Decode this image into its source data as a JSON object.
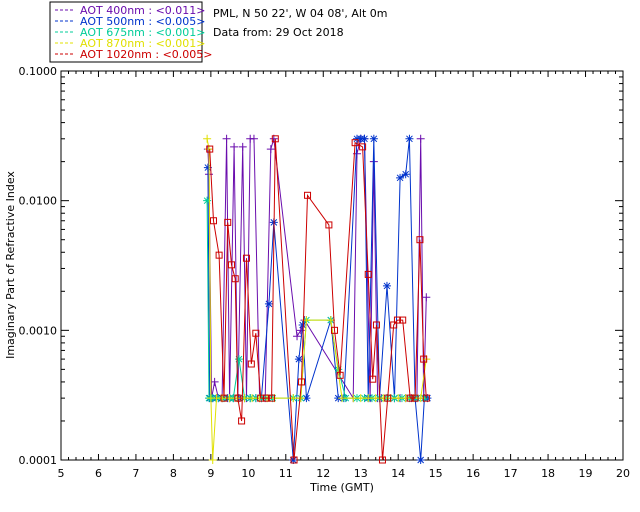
{
  "chart_data": {
    "type": "line",
    "title": "",
    "xlabel": "Time (GMT)",
    "ylabel": "Imaginary Part of Refractive Index",
    "xlim": [
      5,
      20
    ],
    "ylim": [
      0.0001,
      0.1
    ],
    "yscale": "log",
    "grid": false,
    "legend_position": "top-left",
    "x_ticks": [
      "5",
      "6",
      "7",
      "8",
      "9",
      "10",
      "11",
      "12",
      "13",
      "14",
      "15",
      "16",
      "17",
      "18",
      "19",
      "20"
    ],
    "y_ticks": [
      "0.0001",
      "0.0010",
      "0.0100",
      "0.1000"
    ],
    "info_lines": [
      "PML, N 50 22', W 04 08', Alt 0m",
      "Data from: 29 Oct 2018"
    ],
    "series": [
      {
        "name": "AOT  400nm : <0.011>",
        "color": "#6a0dad",
        "marker": "plus",
        "x": [
          8.92,
          8.95,
          9.02,
          9.1,
          9.2,
          9.3,
          9.42,
          9.5,
          9.62,
          9.72,
          9.85,
          9.95,
          10.05,
          10.15,
          10.3,
          10.45,
          10.6,
          10.68,
          11.3,
          11.4,
          11.5,
          12.8,
          12.9,
          13.0,
          13.1,
          13.25,
          13.35,
          13.45,
          13.55,
          13.7,
          13.8,
          13.9,
          14.05,
          14.2,
          14.35,
          14.5,
          14.6,
          14.68,
          14.75
        ],
        "y": [
          0.025,
          0.016,
          0.0003,
          0.0004,
          0.0003,
          0.0003,
          0.03,
          0.0003,
          0.026,
          0.0003,
          0.026,
          0.0003,
          0.03,
          0.03,
          0.0003,
          0.0003,
          0.025,
          0.03,
          0.0009,
          0.001,
          0.0012,
          0.0003,
          0.023,
          0.03,
          0.03,
          0.0003,
          0.02,
          0.0003,
          0.0003,
          0.0003,
          0.0003,
          0.0003,
          0.0003,
          0.0003,
          0.0003,
          0.0003,
          0.03,
          0.0003,
          0.0018
        ]
      },
      {
        "name": "AOT  500nm : <0.005>",
        "color": "#0033cc",
        "marker": "asterisk",
        "x": [
          8.92,
          8.97,
          9.05,
          9.15,
          9.3,
          9.45,
          9.6,
          9.75,
          9.9,
          10.05,
          10.2,
          10.35,
          10.55,
          10.68,
          11.2,
          11.35,
          11.45,
          11.55,
          12.2,
          12.4,
          12.55,
          12.9,
          13.0,
          13.1,
          13.2,
          13.35,
          13.5,
          13.7,
          13.9,
          14.05,
          14.2,
          14.3,
          14.45,
          14.6,
          14.7,
          14.78
        ],
        "y": [
          0.018,
          0.0003,
          0.0003,
          0.0003,
          0.0003,
          0.0003,
          0.0003,
          0.0003,
          0.0003,
          0.0003,
          0.0003,
          0.0003,
          0.0016,
          0.0068,
          0.0001,
          0.0006,
          0.0011,
          0.0003,
          0.0012,
          0.0003,
          0.0003,
          0.03,
          0.03,
          0.03,
          0.0003,
          0.03,
          0.0003,
          0.0022,
          0.0003,
          0.015,
          0.016,
          0.03,
          0.0003,
          0.0001,
          0.0003,
          0.0003
        ]
      },
      {
        "name": "AOT  675nm : <0.001>",
        "color": "#00cc99",
        "marker": "asterisk",
        "x": [
          8.9,
          8.95,
          9.05,
          9.2,
          9.35,
          9.5,
          9.6,
          9.75,
          9.9,
          10.05,
          10.2,
          10.35,
          10.5,
          10.65,
          11.2,
          11.4,
          11.55,
          12.2,
          12.4,
          12.6,
          12.9,
          13.1,
          13.3,
          13.5,
          13.7,
          13.9,
          14.1,
          14.3,
          14.5,
          14.7
        ],
        "y": [
          0.01,
          0.0003,
          0.0003,
          0.0003,
          0.0003,
          0.0003,
          0.0003,
          0.0006,
          0.0003,
          0.0003,
          0.0003,
          0.0003,
          0.0003,
          0.0003,
          0.0003,
          0.0003,
          0.0012,
          0.0012,
          0.0005,
          0.0003,
          0.0003,
          0.0003,
          0.0003,
          0.0003,
          0.0003,
          0.0003,
          0.0003,
          0.0003,
          0.0003,
          0.0003
        ]
      },
      {
        "name": "AOT  870nm : <0.001>",
        "color": "#e0e000",
        "marker": "plus",
        "x": [
          8.9,
          8.95,
          9.0,
          9.05,
          9.15,
          9.3,
          9.5,
          9.7,
          9.9,
          10.1,
          10.3,
          10.5,
          10.7,
          11.2,
          11.4,
          11.55,
          12.2,
          12.5,
          12.8,
          13.0,
          13.2,
          13.4,
          13.6,
          13.8,
          14.0,
          14.2,
          14.4,
          14.6,
          14.75
        ],
        "y": [
          0.03,
          0.025,
          0.0003,
          0.0001,
          0.0003,
          0.0003,
          0.0003,
          0.0003,
          0.0003,
          0.0003,
          0.0003,
          0.0003,
          0.0003,
          0.0003,
          0.0003,
          0.0012,
          0.0012,
          0.0003,
          0.0003,
          0.0003,
          0.0003,
          0.0003,
          0.0003,
          0.0003,
          0.0003,
          0.0003,
          0.0003,
          0.0003,
          0.0006
        ]
      },
      {
        "name": "AOT 1020nm : <0.005>",
        "color": "#cc0000",
        "marker": "square",
        "x": [
          8.97,
          9.07,
          9.22,
          9.35,
          9.45,
          9.55,
          9.65,
          9.72,
          9.82,
          9.95,
          10.08,
          10.2,
          10.33,
          10.48,
          10.62,
          10.72,
          11.22,
          11.42,
          11.58,
          12.15,
          12.3,
          12.45,
          12.85,
          13.05,
          13.2,
          13.32,
          13.42,
          13.58,
          13.72,
          13.88,
          13.98,
          14.12,
          14.32,
          14.45,
          14.58,
          14.68,
          14.75
        ],
        "y": [
          0.025,
          0.007,
          0.0038,
          0.0003,
          0.0068,
          0.0032,
          0.0025,
          0.0003,
          0.0002,
          0.0036,
          0.00055,
          0.00095,
          0.0003,
          0.0003,
          0.0003,
          0.03,
          0.0001,
          0.0004,
          0.011,
          0.0065,
          0.001,
          0.00045,
          0.028,
          0.026,
          0.0027,
          0.00042,
          0.0011,
          0.0001,
          0.0003,
          0.0011,
          0.0012,
          0.0012,
          0.0003,
          0.0003,
          0.005,
          0.0006,
          0.0003
        ]
      }
    ]
  }
}
